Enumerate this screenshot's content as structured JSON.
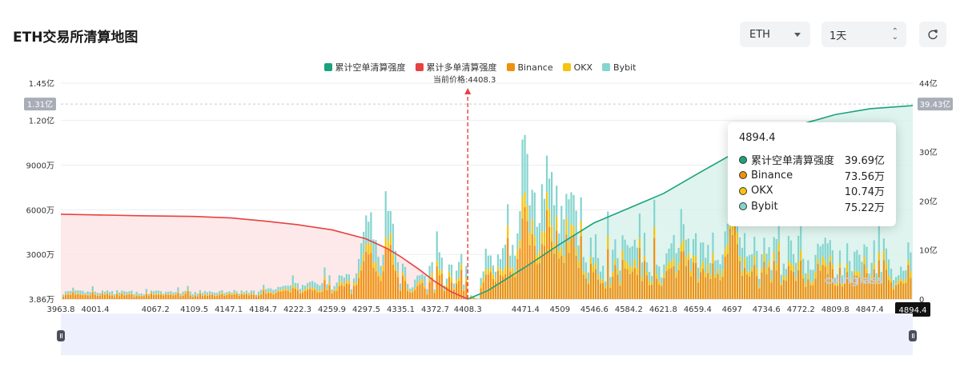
{
  "header": {
    "title": "ETH交易所清算地图",
    "coin_select": "ETH",
    "period_select": "1天"
  },
  "colors": {
    "cum_short": "#1aa37b",
    "cum_long": "#e84142",
    "binance": "#f0900c",
    "okx": "#f5c310",
    "bybit": "#84d4cf"
  },
  "current_price_label": "当前价格:4408.3",
  "watermark": "coinglass",
  "tooltip": {
    "title": "4894.4",
    "rows": [
      {
        "name": "累计空单清算强度",
        "value": "39.69亿",
        "color": "#1aa37b"
      },
      {
        "name": "Binance",
        "value": "73.56万",
        "color": "#f0900c"
      },
      {
        "name": "OKX",
        "value": "10.74万",
        "color": "#f5c310"
      },
      {
        "name": "Bybit",
        "value": "75.22万",
        "color": "#84d4cf"
      }
    ]
  },
  "chart_data": {
    "type": "bar",
    "legend": [
      "累计空单清算强度",
      "累计多单清算强度",
      "Binance",
      "OKX",
      "Bybit"
    ],
    "legend_position": "top-center",
    "x_ticks": [
      "3963.8",
      "4001.4",
      "4067.2",
      "4109.5",
      "4147.1",
      "4184.7",
      "4222.3",
      "4259.9",
      "4297.5",
      "4335.1",
      "4372.7",
      "4408.3",
      "4471.4",
      "4509",
      "4546.6",
      "4584.2",
      "4621.8",
      "4659.4",
      "4697",
      "4734.6",
      "4772.2",
      "4809.8",
      "4847.4"
    ],
    "x_range": [
      3963.8,
      4894.4
    ],
    "x_end_label": "4894.4",
    "current_price": 4408.3,
    "left_axis": {
      "ticks": [
        "3.86万",
        "3000万",
        "6000万",
        "9000万",
        "1.20亿",
        "1.45亿"
      ],
      "tick_values": [
        38600,
        30000000,
        60000000,
        90000000,
        120000000,
        145000000
      ],
      "range": [
        38600,
        145000000
      ],
      "highlight_label": "1.31亿",
      "highlight_value": 131000000
    },
    "right_axis": {
      "ticks": [
        "0",
        "10亿",
        "20亿",
        "30亿",
        "44亿"
      ],
      "tick_values": [
        0,
        1000000000,
        2000000000,
        3000000000,
        4400000000
      ],
      "range": [
        0,
        4400000000
      ],
      "highlight_label": "39.43亿",
      "highlight_value": 3943000000
    },
    "grid": true,
    "cum_long_curve": [
      [
        3963.8,
        57000000
      ],
      [
        4050,
        56000000
      ],
      [
        4110,
        55500000
      ],
      [
        4150,
        54500000
      ],
      [
        4185,
        52500000
      ],
      [
        4222,
        50000000
      ],
      [
        4260,
        46500000
      ],
      [
        4297,
        40500000
      ],
      [
        4320,
        34000000
      ],
      [
        4335,
        28500000
      ],
      [
        4355,
        20000000
      ],
      [
        4372,
        12000000
      ],
      [
        4390,
        5000000
      ],
      [
        4408.3,
        38600
      ]
    ],
    "cum_short_curve": [
      [
        4408.3,
        0
      ],
      [
        4430,
        170000000
      ],
      [
        4471,
        650000000
      ],
      [
        4509,
        1120000000
      ],
      [
        4546,
        1550000000
      ],
      [
        4584,
        1850000000
      ],
      [
        4622,
        2150000000
      ],
      [
        4659,
        2550000000
      ],
      [
        4697,
        2950000000
      ],
      [
        4735,
        3340000000
      ],
      [
        4772,
        3560000000
      ],
      [
        4810,
        3760000000
      ],
      [
        4848,
        3880000000
      ],
      [
        4894.4,
        3943000000
      ]
    ],
    "bars_summary": "stacked liquidation bars (Binance, OKX, Bybit); tallest near 4471–4509 around 1.31亿; near 4297–4335 around 9000万; 4697 around 1.12亿"
  }
}
